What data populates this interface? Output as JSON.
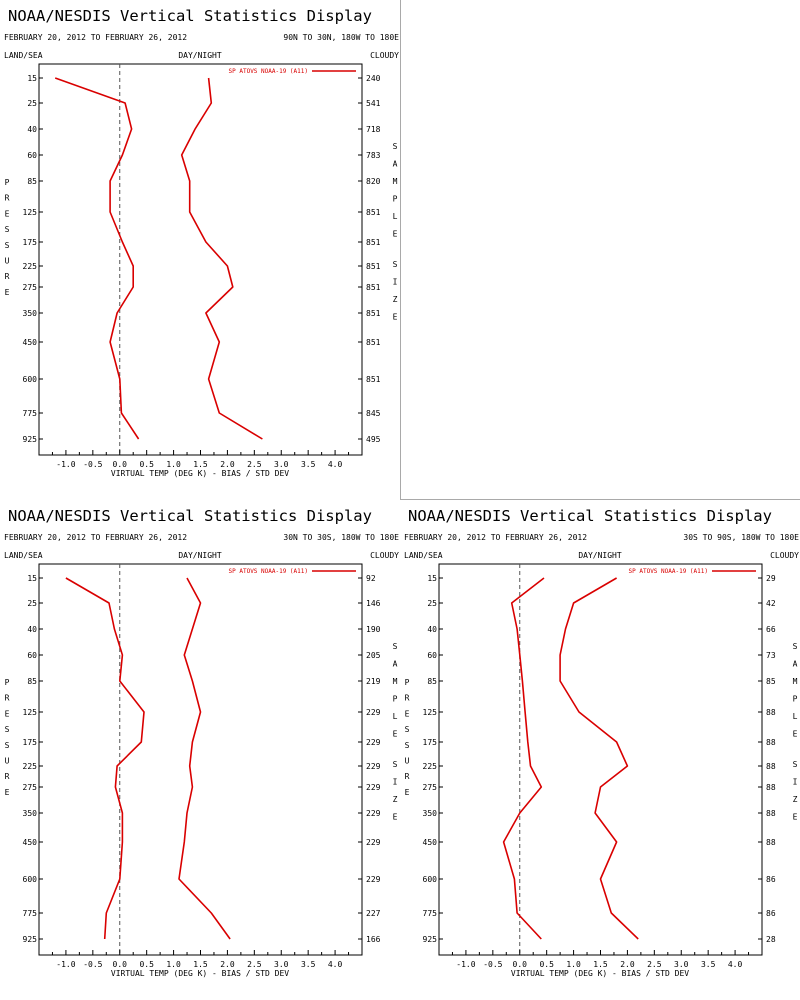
{
  "chart_data": [
    {
      "type": "line",
      "title": "NOAA/NESDIS Vertical Statistics Display",
      "date_range": "FEBRUARY 20, 2012 TO FEBRUARY 26, 2012",
      "region": "90N TO 30N, 180W TO 180E",
      "header_left": "LAND/SEA",
      "header_center": "DAY/NIGHT",
      "header_right": "CLOUDY",
      "legend_label": "SP ATOVS NOAA-19 (A11)",
      "xlabel": "VIRTUAL TEMP (DEG K) - BIAS / STD DEV",
      "ylabel": "PRESSURE",
      "right_label": "SAMPLE SIZE",
      "xlim": [
        -1.5,
        4.5
      ],
      "x_ticks": [
        "-1.0",
        "-0.5",
        "0.0",
        "0.5",
        "1.0",
        "1.5",
        "2.0",
        "2.5",
        "3.0",
        "3.5",
        "4.0"
      ],
      "pressure_levels": [
        "15",
        "25",
        "40",
        "60",
        "85",
        "125",
        "175",
        "225",
        "275",
        "350",
        "450",
        "600",
        "775",
        "925"
      ],
      "sample_size": [
        "240",
        "541",
        "718",
        "783",
        "820",
        "851",
        "851",
        "851",
        "851",
        "851",
        "851",
        "851",
        "845",
        "495"
      ],
      "line_color": "#d90000",
      "series": [
        {
          "name": "BIAS",
          "values": [
            -1.2,
            0.1,
            0.22,
            0.05,
            -0.18,
            -0.18,
            0.05,
            0.25,
            0.25,
            -0.05,
            -0.18,
            0.0,
            0.03,
            0.35
          ]
        },
        {
          "name": "STD DEV",
          "values": [
            1.65,
            1.7,
            1.4,
            1.15,
            1.3,
            1.3,
            1.6,
            2.0,
            2.1,
            1.6,
            1.85,
            1.65,
            1.85,
            2.65
          ]
        }
      ]
    },
    {
      "type": "line",
      "title": "NOAA/NESDIS Vertical Statistics Display",
      "date_range": "FEBRUARY 20, 2012 TO FEBRUARY 26, 2012",
      "region": "30N TO 30S, 180W TO 180E",
      "header_left": "LAND/SEA",
      "header_center": "DAY/NIGHT",
      "header_right": "CLOUDY",
      "legend_label": "SP ATOVS NOAA-19 (A11)",
      "xlabel": "VIRTUAL TEMP (DEG K) - BIAS / STD DEV",
      "ylabel": "PRESSURE",
      "right_label": "SAMPLE SIZE",
      "xlim": [
        -1.5,
        4.5
      ],
      "x_ticks": [
        "-1.0",
        "-0.5",
        "0.0",
        "0.5",
        "1.0",
        "1.5",
        "2.0",
        "2.5",
        "3.0",
        "3.5",
        "4.0"
      ],
      "pressure_levels": [
        "15",
        "25",
        "40",
        "60",
        "85",
        "125",
        "175",
        "225",
        "275",
        "350",
        "450",
        "600",
        "775",
        "925"
      ],
      "sample_size": [
        "92",
        "146",
        "190",
        "205",
        "219",
        "229",
        "229",
        "229",
        "229",
        "229",
        "229",
        "229",
        "227",
        "166"
      ],
      "line_color": "#d90000",
      "series": [
        {
          "name": "BIAS",
          "values": [
            -1.0,
            -0.2,
            -0.1,
            0.05,
            0.0,
            0.45,
            0.4,
            -0.05,
            -0.08,
            0.05,
            0.05,
            0.0,
            -0.25,
            -0.28
          ]
        },
        {
          "name": "STD DEV",
          "values": [
            1.25,
            1.5,
            1.35,
            1.2,
            1.35,
            1.5,
            1.35,
            1.3,
            1.35,
            1.25,
            1.2,
            1.1,
            1.7,
            2.05
          ]
        }
      ]
    },
    {
      "type": "line",
      "title": "NOAA/NESDIS Vertical Statistics Display",
      "date_range": "FEBRUARY 20, 2012 TO FEBRUARY 26, 2012",
      "region": "30S TO 90S, 180W TO 180E",
      "header_left": "LAND/SEA",
      "header_center": "DAY/NIGHT",
      "header_right": "CLOUDY",
      "legend_label": "SP ATOVS NOAA-19 (A11)",
      "xlabel": "VIRTUAL TEMP (DEG K) - BIAS / STD DEV",
      "ylabel": "PRESSURE",
      "right_label": "SAMPLE SIZE",
      "xlim": [
        -1.5,
        4.5
      ],
      "x_ticks": [
        "-1.0",
        "-0.5",
        "0.0",
        "0.5",
        "1.0",
        "1.5",
        "2.0",
        "2.5",
        "3.0",
        "3.5",
        "4.0"
      ],
      "pressure_levels": [
        "15",
        "25",
        "40",
        "60",
        "85",
        "125",
        "175",
        "225",
        "275",
        "350",
        "450",
        "600",
        "775",
        "925"
      ],
      "sample_size": [
        "29",
        "42",
        "66",
        "73",
        "85",
        "88",
        "88",
        "88",
        "88",
        "88",
        "88",
        "86",
        "86",
        "28"
      ],
      "line_color": "#d90000",
      "series": [
        {
          "name": "BIAS",
          "values": [
            0.45,
            -0.15,
            -0.05,
            0.0,
            0.05,
            0.1,
            0.15,
            0.2,
            0.4,
            0.0,
            -0.3,
            -0.1,
            -0.05,
            0.4
          ],
          "note": ""
        },
        {
          "name": "STD DEV",
          "values": [
            1.8,
            1.0,
            0.85,
            0.75,
            0.75,
            1.1,
            1.8,
            2.0,
            1.5,
            1.4,
            1.8,
            1.5,
            1.7,
            2.2
          ]
        }
      ]
    }
  ]
}
